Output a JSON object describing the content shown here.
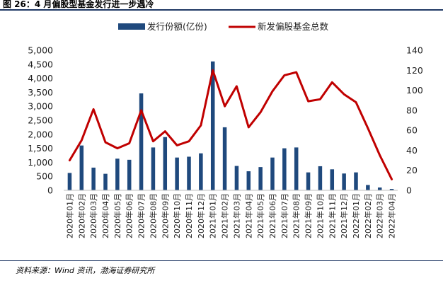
{
  "figure": {
    "title": "图 26：4 月偏股型基金发行进一步遇冷",
    "source": "资料来源：Wind 资讯，渤海证券研究所"
  },
  "colors": {
    "bar": "#1f497d",
    "line": "#c00000"
  },
  "chart_data": {
    "type": "bar",
    "categories": [
      "2020年01月",
      "2020年02月",
      "2020年03月",
      "2020年04月",
      "2020年05月",
      "2020年06月",
      "2020年07月",
      "2020年08月",
      "2020年09月",
      "2020年10月",
      "2020年11月",
      "2020年12月",
      "2021年01月",
      "2021年02月",
      "2021年03月",
      "2021年04月",
      "2021年05月",
      "2021年06月",
      "2021年07月",
      "2021年08月",
      "2021年09月",
      "2021年10月",
      "2021年11月",
      "2021年12月",
      "2022年01月",
      "2022年02月",
      "2022年03月",
      "2022年04月"
    ],
    "series": [
      {
        "name": "发行份额(亿份)",
        "type": "bar",
        "axis": "left",
        "values": [
          620,
          1600,
          810,
          590,
          1130,
          1090,
          3460,
          1530,
          1900,
          1170,
          1200,
          1320,
          4600,
          2250,
          870,
          680,
          830,
          1170,
          1500,
          1530,
          640,
          860,
          750,
          600,
          640,
          190,
          100,
          50
        ]
      },
      {
        "name": "新发偏股基金总数",
        "type": "line",
        "axis": "right",
        "values": [
          30,
          50,
          81,
          48,
          42,
          47,
          80,
          49,
          59,
          45,
          49,
          65,
          120,
          84,
          104,
          63,
          78,
          99,
          115,
          118,
          89,
          91,
          108,
          96,
          88,
          62,
          35,
          11
        ]
      }
    ],
    "y_left": {
      "min": 0,
      "max": 5000,
      "ticks": [
        0,
        500,
        1000,
        1500,
        2000,
        2500,
        3000,
        3500,
        4000,
        4500,
        5000
      ],
      "tick_labels": [
        "0",
        "500",
        "1,000",
        "1,500",
        "2,000",
        "2,500",
        "3,000",
        "3,500",
        "4,000",
        "4,500",
        "5,000"
      ]
    },
    "y_right": {
      "min": 0,
      "max": 140,
      "ticks": [
        0,
        20,
        40,
        60,
        80,
        100,
        120,
        140
      ],
      "tick_labels": [
        "0",
        "20",
        "40",
        "60",
        "80",
        "100",
        "120",
        "140"
      ]
    },
    "legend_position": "top-center",
    "grid": false
  }
}
